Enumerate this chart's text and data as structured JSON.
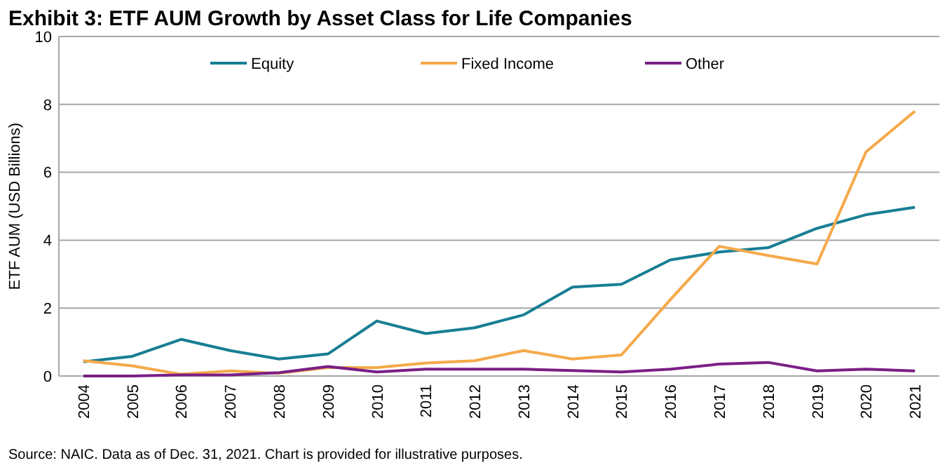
{
  "chart_data": {
    "type": "line",
    "title": "Exhibit 3: ETF AUM Growth by Asset Class for Life Companies",
    "ylabel": "ETF AUM (USD Billions)",
    "categories": [
      "2004",
      "2005",
      "2006",
      "2007",
      "2008",
      "2009",
      "2010",
      "2011",
      "2012",
      "2013",
      "2014",
      "2015",
      "2016",
      "2017",
      "2018",
      "2019",
      "2020",
      "2021"
    ],
    "series": [
      {
        "name": "Equity",
        "color": "#177e93",
        "values": [
          0.42,
          0.58,
          1.08,
          0.75,
          0.5,
          0.65,
          1.62,
          1.25,
          1.42,
          1.8,
          2.62,
          2.7,
          3.42,
          3.65,
          3.78,
          4.35,
          4.75,
          4.97
        ]
      },
      {
        "name": "Fixed Income",
        "color": "#f5a94a",
        "values": [
          0.45,
          0.3,
          0.05,
          0.15,
          0.08,
          0.25,
          0.25,
          0.38,
          0.45,
          0.75,
          0.5,
          0.62,
          2.25,
          3.82,
          3.55,
          3.3,
          6.6,
          7.8
        ]
      },
      {
        "name": "Other",
        "color": "#7a1f86",
        "values": [
          0,
          0,
          0.03,
          0.03,
          0.1,
          0.28,
          0.12,
          0.2,
          0.2,
          0.2,
          0.16,
          0.12,
          0.2,
          0.35,
          0.4,
          0.15,
          0.2,
          0.15
        ]
      }
    ],
    "ylim": [
      0,
      10
    ],
    "yticks": [
      0,
      2,
      4,
      6,
      8,
      10
    ],
    "grid": "y",
    "legend": "top",
    "marker": "none",
    "line_style": "solid",
    "annotations": [
      "Source: NAIC. Data as of Dec. 31, 2021. Chart is provided for illustrative purposes."
    ]
  }
}
